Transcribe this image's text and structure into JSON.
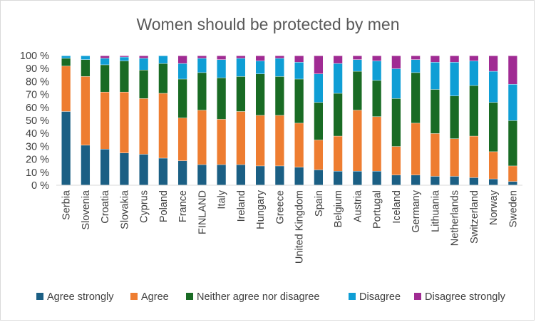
{
  "chart_data": {
    "type": "bar",
    "stacked": true,
    "percent_stacked": true,
    "title": "Women should be protected by men",
    "xlabel": "",
    "ylabel": "",
    "ylim": [
      0,
      100
    ],
    "ytick_labels": [
      "0 %",
      "10 %",
      "20 %",
      "30 %",
      "40 %",
      "50 %",
      "60 %",
      "70 %",
      "80 %",
      "90 %",
      "100 %"
    ],
    "grid": false,
    "legend_position": "bottom",
    "categories": [
      "Serbia",
      "Slovenia",
      "Croatia",
      "Slovakia",
      "Cyprus",
      "Poland",
      "France",
      "FINLAND",
      "Italy",
      "Ireland",
      "Hungary",
      "Greece",
      "United Kingdom",
      "Spain",
      "Belgium",
      "Austria",
      "Portugal",
      "Iceland",
      "Germany",
      "Lithuania",
      "Netherlands",
      "Switzerland",
      "Norway",
      "Sweden"
    ],
    "series": [
      {
        "name": "Agree strongly",
        "color": "#1b5f84",
        "values": [
          57,
          31,
          28,
          25,
          24,
          21,
          19,
          16,
          16,
          16,
          15,
          15,
          14,
          12,
          11,
          11,
          11,
          8,
          8,
          7,
          7,
          6,
          5,
          3
        ]
      },
      {
        "name": "Agree",
        "color": "#ee7d31",
        "values": [
          35,
          53,
          44,
          47,
          43,
          50,
          33,
          42,
          35,
          41,
          39,
          39,
          34,
          23,
          27,
          47,
          42,
          22,
          40,
          33,
          29,
          32,
          21,
          12
        ]
      },
      {
        "name": "Neither agree nor disagree",
        "color": "#196b24",
        "values": [
          6,
          13,
          21,
          24,
          22,
          23,
          30,
          29,
          32,
          27,
          32,
          30,
          34,
          29,
          33,
          30,
          28,
          37,
          39,
          34,
          33,
          39,
          38,
          35
        ]
      },
      {
        "name": "Disagree",
        "color": "#0f9ed5",
        "values": [
          2,
          3,
          5,
          3,
          9,
          6,
          12,
          11,
          14,
          14,
          10,
          14,
          13,
          22,
          23,
          9,
          15,
          23,
          10,
          21,
          26,
          19,
          24,
          28
        ]
      },
      {
        "name": "Disagree strongly",
        "color": "#a02b93",
        "values": [
          0,
          0,
          2,
          1,
          2,
          0,
          6,
          2,
          3,
          2,
          4,
          2,
          5,
          14,
          6,
          3,
          4,
          10,
          3,
          5,
          5,
          4,
          12,
          22
        ]
      }
    ]
  }
}
